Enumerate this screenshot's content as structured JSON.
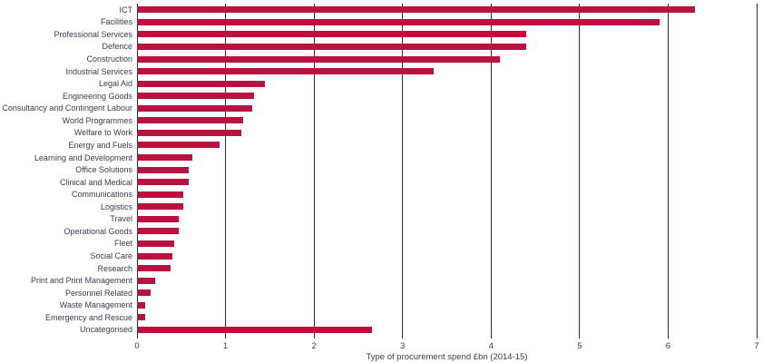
{
  "chart_data": {
    "type": "bar",
    "orientation": "horizontal",
    "title": "",
    "xlabel": "Type of procurement spend £bn (2014-15)",
    "ylabel": "",
    "xlim": [
      0,
      7
    ],
    "x_ticks": [
      "0",
      "1",
      "2",
      "3",
      "4",
      "5",
      "6",
      "7"
    ],
    "grid": true,
    "legend": "none",
    "bar_color": "#b9123e",
    "gridline_color": "#3a262e",
    "text_color": "#3a3a4d",
    "background_color": "#ffffff",
    "categories": [
      "ICT",
      "Facilities",
      "Professional Services",
      "Defence",
      "Construction",
      "Industrial Services",
      "Legal Aid",
      "Engineering Goods",
      "Consultancy and Contingent Labour",
      "World Programmes",
      "Welfare to Work",
      "Energy and Fuels",
      "Learning and Development",
      "Office Solutions",
      "Clinical and Medical",
      "Communications",
      "Logistics",
      "Travel",
      "Operational Goods",
      "Fleet",
      "Social Care",
      "Research",
      "Print and Print Management",
      "Personnel Related",
      "Waste Management",
      "Emergency and Rescue",
      "Uncategorised"
    ],
    "values": [
      6.3,
      5.9,
      4.4,
      4.4,
      4.1,
      3.35,
      1.45,
      1.32,
      1.3,
      1.2,
      1.18,
      0.93,
      0.63,
      0.58,
      0.58,
      0.52,
      0.52,
      0.47,
      0.47,
      0.42,
      0.4,
      0.38,
      0.2,
      0.15,
      0.09,
      0.09,
      2.65
    ]
  }
}
